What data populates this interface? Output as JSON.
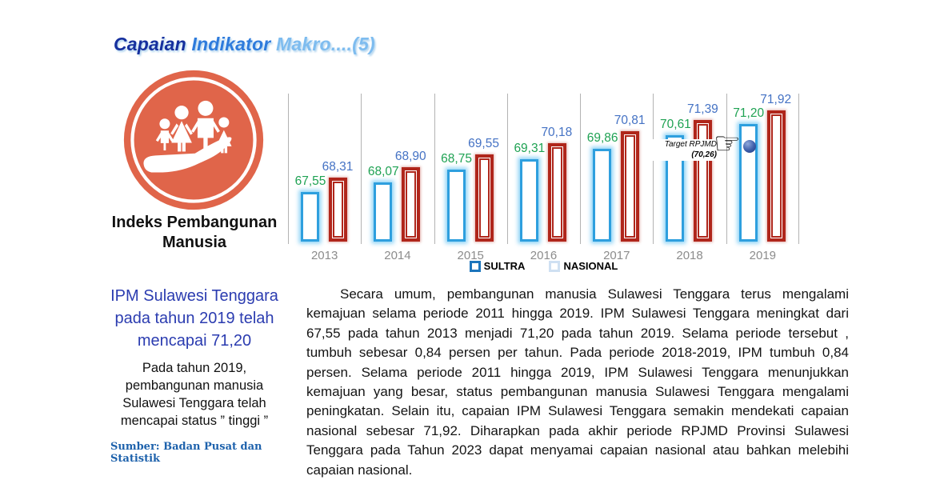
{
  "title": {
    "part1": "Capaian ",
    "part2": "Indikator ",
    "part3": "Makro....(5)"
  },
  "left_panel": {
    "icon": "family-in-hand-icon",
    "heading": "Indeks Pembangunan Manusia",
    "highlight": "IPM Sulawesi Tenggara pada tahun 2019 telah mencapai 71,20",
    "status_text": "Pada tahun 2019, pembangunan manusia Sulawesi Tenggara telah mencapai status ” tinggi ”",
    "source": "Sumber: Badan Pusat dan Statistik"
  },
  "chart_data": {
    "type": "bar",
    "categories": [
      "2013",
      "2014",
      "2015",
      "2016",
      "2017",
      "2018",
      "2019"
    ],
    "series": [
      {
        "name": "SULTRA",
        "color": "#2E9FDE",
        "label_color": "#1FA253",
        "values": [
          67.55,
          68.07,
          68.75,
          69.31,
          69.86,
          70.61,
          71.2
        ],
        "labels": [
          "67,55",
          "68,07",
          "68,75",
          "69,31",
          "69,86",
          "70,61",
          "71,20"
        ]
      },
      {
        "name": "NASIONAL",
        "color": "#B0261B",
        "label_color": "#4472C4",
        "values": [
          68.31,
          68.9,
          69.55,
          70.18,
          70.81,
          71.39,
          71.92
        ],
        "labels": [
          "68,31",
          "68,90",
          "69,55",
          "70,18",
          "70,81",
          "71,39",
          "71,92"
        ]
      }
    ],
    "annotation": {
      "line1": "Target RPJMD",
      "line2": "(70,26)",
      "value": 70.26,
      "target_year": "2019"
    },
    "legend": {
      "sultra": "SULTRA",
      "nasional": "NASIONAL",
      "position": "bottom-center"
    },
    "ylim": [
      64.9,
      72.9
    ],
    "grid": "vertical-separators-between-year-groups",
    "bar_style": "hollow-outlined-with-glow",
    "title": "",
    "xlabel": "",
    "ylabel": ""
  },
  "paragraph": "Secara umum, pembangunan manusia Sulawesi Tenggara terus mengalami kemajuan selama periode 2011 hingga 2019. IPM Sulawesi Tenggara meningkat dari 67,55 pada tahun 2013 menjadi 71,20 pada tahun 2019. Selama periode tersebut , tumbuh sebesar 0,84 persen per tahun. Pada periode 2018-2019, IPM tumbuh 0,84 persen. Selama periode 2011 hingga 2019, IPM Sulawesi Tenggara menunjukkan kemajuan yang besar, status pembangunan manusia Sulawesi Tenggara mengalami peningkatan. Selain itu, capaian IPM Sulawesi Tenggara semakin mendekati capaian nasional sebesar 71,92. Diharapkan pada akhir periode RPJMD Provinsi Sulawesi Tenggara pada Tahun 2023 dapat menyamai capaian nasional atau bahkan melebihi capaian nasional."
}
